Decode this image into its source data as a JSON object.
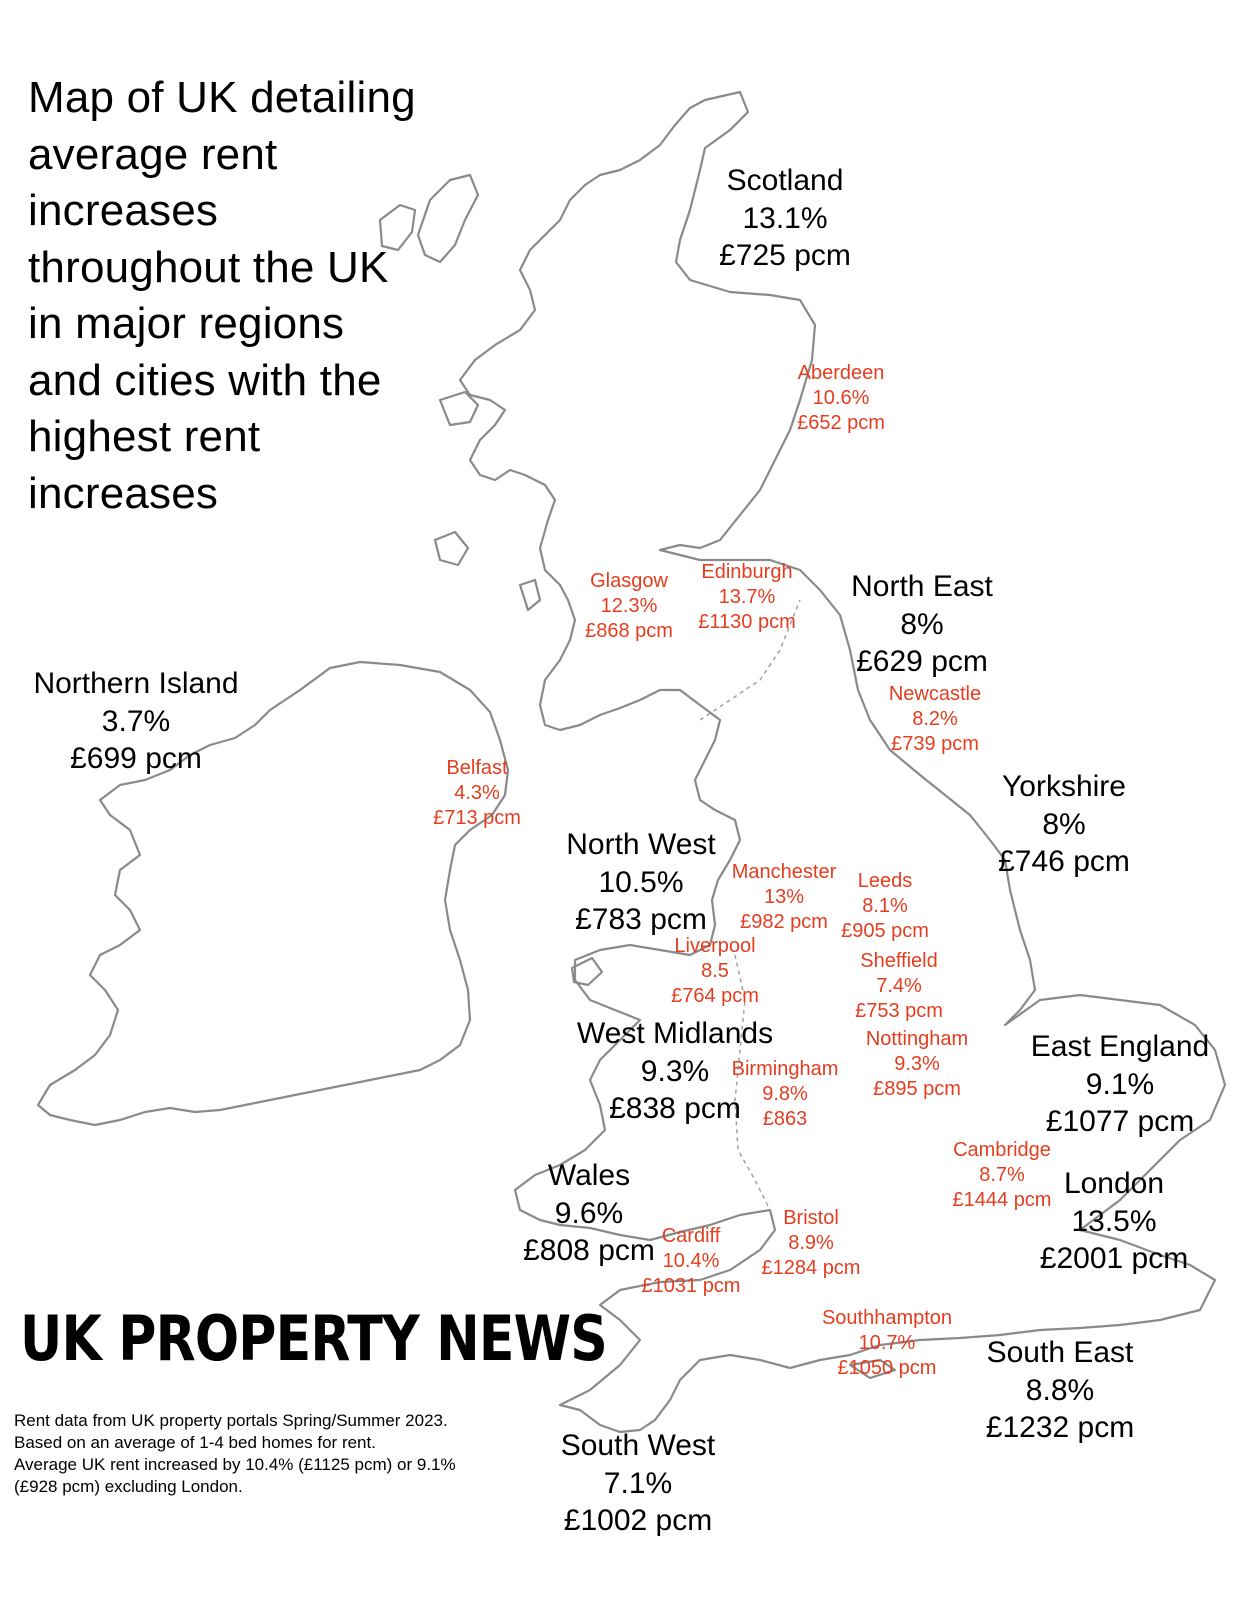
{
  "title": "Map of UK detailing average rent increases throughout the UK in major regions and cities with the highest rent increases",
  "brand": "UK PROPERTY NEWS",
  "footnote": [
    "Rent data from UK property portals Spring/Summer 2023.",
    "Based on an average of 1-4 bed homes for rent.",
    "Average UK rent increased by 10.4% (£1125 pcm) or 9.1%",
    "(£928 pcm) excluding London."
  ],
  "colors": {
    "region_text": "#000000",
    "city_text": "#e53d1f",
    "outline": "#8a8a8a"
  },
  "regions": [
    {
      "id": "scotland",
      "name": "Scotland",
      "pct": "13.1%",
      "rent": "£725 pcm"
    },
    {
      "id": "northern-island",
      "name": "Northern Island",
      "pct": "3.7%",
      "rent": "£699 pcm"
    },
    {
      "id": "north-east",
      "name": "North East",
      "pct": "8%",
      "rent": "£629 pcm"
    },
    {
      "id": "yorkshire",
      "name": "Yorkshire",
      "pct": "8%",
      "rent": "£746 pcm"
    },
    {
      "id": "north-west",
      "name": "North West",
      "pct": "10.5%",
      "rent": "£783 pcm"
    },
    {
      "id": "west-midlands",
      "name": "West Midlands",
      "pct": "9.3%",
      "rent": "£838 pcm"
    },
    {
      "id": "east-england",
      "name": "East England",
      "pct": "9.1%",
      "rent": "£1077 pcm"
    },
    {
      "id": "wales",
      "name": "Wales",
      "pct": "9.6%",
      "rent": "£808 pcm"
    },
    {
      "id": "london",
      "name": "London",
      "pct": "13.5%",
      "rent": "£2001 pcm"
    },
    {
      "id": "south-east",
      "name": "South East",
      "pct": "8.8%",
      "rent": "£1232 pcm"
    },
    {
      "id": "south-west",
      "name": "South West",
      "pct": "7.1%",
      "rent": "£1002 pcm"
    }
  ],
  "cities": [
    {
      "id": "aberdeen",
      "name": "Aberdeen",
      "pct": "10.6%",
      "rent": "£652 pcm"
    },
    {
      "id": "glasgow",
      "name": "Glasgow",
      "pct": "12.3%",
      "rent": "£868 pcm"
    },
    {
      "id": "edinburgh",
      "name": "Edinburgh",
      "pct": "13.7%",
      "rent": "£1130 pcm"
    },
    {
      "id": "newcastle",
      "name": "Newcastle",
      "pct": "8.2%",
      "rent": "£739 pcm"
    },
    {
      "id": "belfast",
      "name": "Belfast",
      "pct": "4.3%",
      "rent": "£713 pcm"
    },
    {
      "id": "manchester",
      "name": "Manchester",
      "pct": "13%",
      "rent": "£982 pcm"
    },
    {
      "id": "leeds",
      "name": "Leeds",
      "pct": "8.1%",
      "rent": "£905 pcm"
    },
    {
      "id": "liverpool",
      "name": "Liverpool",
      "pct": "8.5",
      "rent": "£764 pcm"
    },
    {
      "id": "sheffield",
      "name": "Sheffield",
      "pct": "7.4%",
      "rent": "£753 pcm"
    },
    {
      "id": "nottingham",
      "name": "Nottingham",
      "pct": "9.3%",
      "rent": "£895 pcm"
    },
    {
      "id": "birmingham",
      "name": "Birmingham",
      "pct": "9.8%",
      "rent": "£863"
    },
    {
      "id": "cambridge",
      "name": "Cambridge",
      "pct": "8.7%",
      "rent": "£1444 pcm"
    },
    {
      "id": "cardiff",
      "name": "Cardiff",
      "pct": "10.4%",
      "rent": "£1031 pcm"
    },
    {
      "id": "bristol",
      "name": "Bristol",
      "pct": "8.9%",
      "rent": "£1284 pcm"
    },
    {
      "id": "southhampton",
      "name": "Southhampton",
      "pct": "10.7%",
      "rent": "£1050 pcm"
    }
  ]
}
